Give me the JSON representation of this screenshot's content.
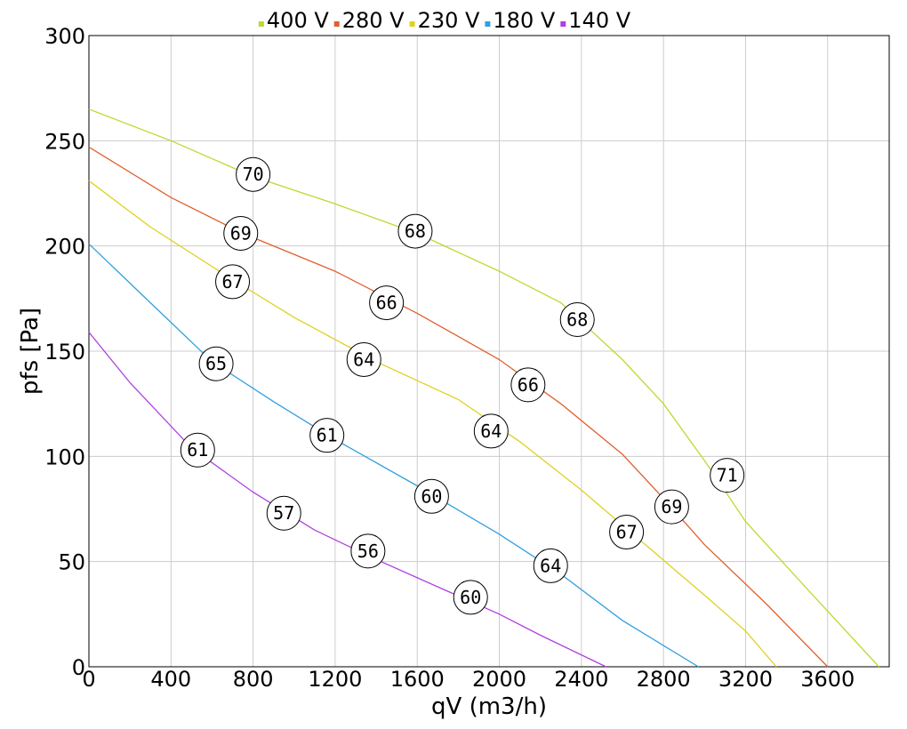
{
  "chart_data": {
    "type": "line",
    "xlabel": "qV (m3/h)",
    "ylabel": "pfs [Pa]",
    "xlim": [
      0,
      3900
    ],
    "ylim": [
      0,
      300
    ],
    "xticks": [
      0,
      400,
      800,
      1200,
      1600,
      2000,
      2400,
      2800,
      3200,
      3600
    ],
    "yticks": [
      0,
      50,
      100,
      150,
      200,
      250,
      300
    ],
    "grid": true,
    "legend_position": "top",
    "series": [
      {
        "name": "400 V",
        "color": "#b8dc30",
        "points": [
          [
            0,
            265
          ],
          [
            400,
            250
          ],
          [
            800,
            233
          ],
          [
            1200,
            220
          ],
          [
            1600,
            206
          ],
          [
            2000,
            188
          ],
          [
            2300,
            173
          ],
          [
            2600,
            146
          ],
          [
            2800,
            125
          ],
          [
            3000,
            98
          ],
          [
            3200,
            69
          ],
          [
            3500,
            37
          ],
          [
            3850,
            0
          ]
        ],
        "labels": [
          {
            "x": 800,
            "y": 234,
            "value": "70"
          },
          {
            "x": 1590,
            "y": 207,
            "value": "68"
          },
          {
            "x": 2380,
            "y": 165,
            "value": "68"
          },
          {
            "x": 3110,
            "y": 91,
            "value": "71"
          }
        ]
      },
      {
        "name": "280 V",
        "color": "#e06030",
        "points": [
          [
            0,
            247
          ],
          [
            400,
            223
          ],
          [
            750,
            206
          ],
          [
            1200,
            188
          ],
          [
            1600,
            168
          ],
          [
            2000,
            146
          ],
          [
            2300,
            125
          ],
          [
            2600,
            101
          ],
          [
            2800,
            80
          ],
          [
            3000,
            58
          ],
          [
            3300,
            30
          ],
          [
            3600,
            0
          ]
        ],
        "labels": [
          {
            "x": 740,
            "y": 206,
            "value": "69"
          },
          {
            "x": 1450,
            "y": 173,
            "value": "66"
          },
          {
            "x": 2140,
            "y": 134,
            "value": "66"
          },
          {
            "x": 2840,
            "y": 76,
            "value": "69"
          }
        ]
      },
      {
        "name": "230 V",
        "color": "#e0d020",
        "points": [
          [
            0,
            231
          ],
          [
            300,
            209
          ],
          [
            700,
            184
          ],
          [
            1000,
            166
          ],
          [
            1400,
            145
          ],
          [
            1800,
            127
          ],
          [
            2100,
            107
          ],
          [
            2400,
            84
          ],
          [
            2700,
            59
          ],
          [
            3000,
            34
          ],
          [
            3200,
            17
          ],
          [
            3350,
            0
          ]
        ],
        "labels": [
          {
            "x": 700,
            "y": 183,
            "value": "67"
          },
          {
            "x": 1340,
            "y": 146,
            "value": "64"
          },
          {
            "x": 1960,
            "y": 112,
            "value": "64"
          },
          {
            "x": 2620,
            "y": 64,
            "value": "67"
          }
        ]
      },
      {
        "name": "180 V",
        "color": "#30a0e0",
        "points": [
          [
            0,
            201
          ],
          [
            300,
            173
          ],
          [
            600,
            145
          ],
          [
            900,
            126
          ],
          [
            1200,
            108
          ],
          [
            1600,
            86
          ],
          [
            2000,
            63
          ],
          [
            2300,
            44
          ],
          [
            2600,
            22
          ],
          [
            2970,
            0
          ]
        ],
        "labels": [
          {
            "x": 620,
            "y": 144,
            "value": "65"
          },
          {
            "x": 1160,
            "y": 110,
            "value": "61"
          },
          {
            "x": 1670,
            "y": 81,
            "value": "60"
          },
          {
            "x": 2250,
            "y": 48,
            "value": "64"
          }
        ]
      },
      {
        "name": "140 V",
        "color": "#b040e0",
        "points": [
          [
            0,
            159
          ],
          [
            200,
            135
          ],
          [
            500,
            104
          ],
          [
            800,
            83
          ],
          [
            1100,
            65
          ],
          [
            1400,
            51
          ],
          [
            1700,
            38
          ],
          [
            2000,
            25
          ],
          [
            2200,
            15
          ],
          [
            2520,
            0
          ]
        ],
        "labels": [
          {
            "x": 530,
            "y": 103,
            "value": "61"
          },
          {
            "x": 950,
            "y": 73,
            "value": "57"
          },
          {
            "x": 1360,
            "y": 55,
            "value": "56"
          },
          {
            "x": 1860,
            "y": 33,
            "value": "60"
          }
        ]
      }
    ]
  }
}
